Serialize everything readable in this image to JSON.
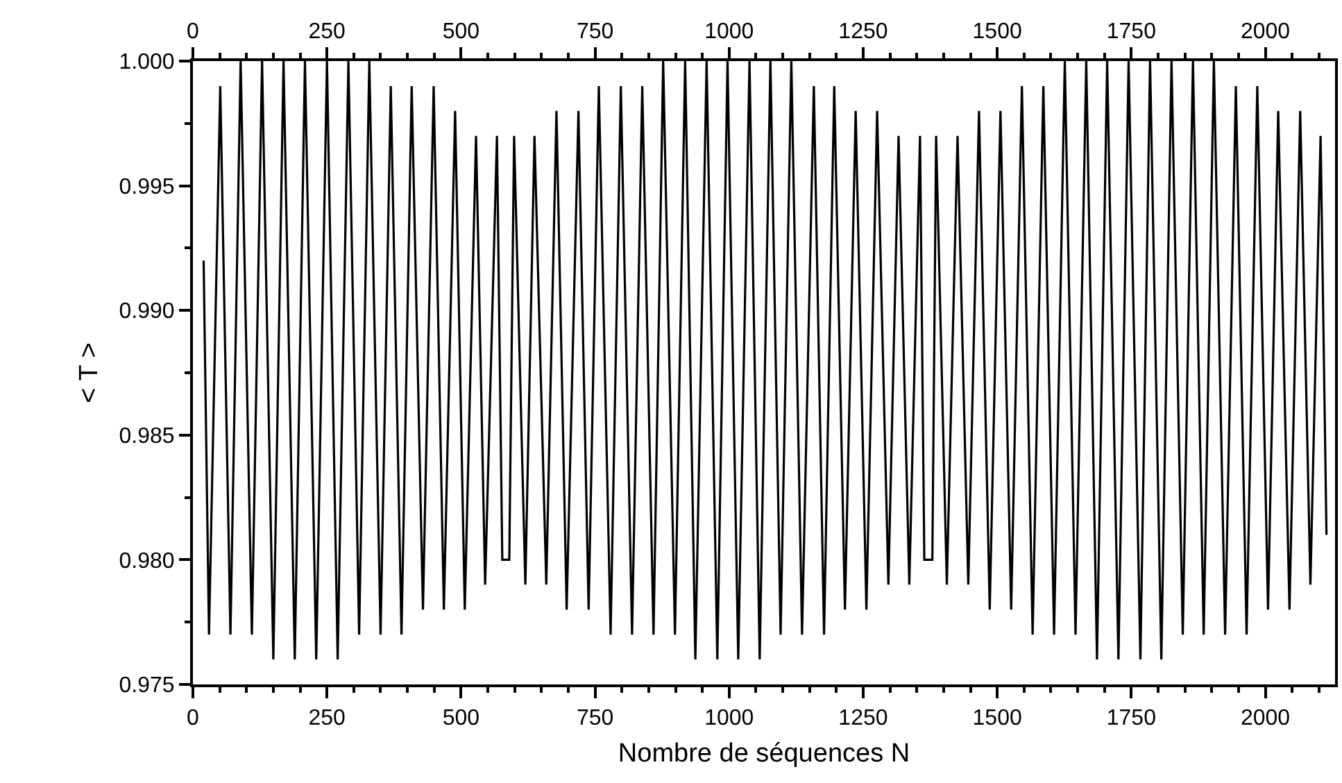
{
  "chart_data": {
    "type": "line",
    "xlabel": "Nombre de séquences N",
    "ylabel": "< T >",
    "xlim": [
      0,
      2130
    ],
    "x2lim": [
      0,
      2130
    ],
    "xticks": [
      0,
      {
        "value": 50,
        "label": null
      },
      {
        "value": 100,
        "label": null
      },
      {
        "value": 150,
        "label": null
      },
      {
        "value": 200,
        "label": null
      },
      250,
      {
        "value": 300,
        "label": null
      },
      {
        "value": 350,
        "label": null
      },
      {
        "value": 400,
        "label": null
      },
      {
        "value": 450,
        "label": null
      },
      500,
      {
        "value": 550,
        "label": null
      },
      {
        "value": 600,
        "label": null
      },
      {
        "value": 650,
        "label": null
      },
      {
        "value": 700,
        "label": null
      },
      750,
      {
        "value": 800,
        "label": null
      },
      {
        "value": 850,
        "label": null
      },
      {
        "value": 900,
        "label": null
      },
      {
        "value": 950,
        "label": null
      },
      1000,
      {
        "value": 1050,
        "label": null
      },
      {
        "value": 1100,
        "label": null
      },
      {
        "value": 1150,
        "label": null
      },
      {
        "value": 1200,
        "label": null
      },
      1250,
      {
        "value": 1300,
        "label": null
      },
      {
        "value": 1350,
        "label": null
      },
      {
        "value": 1400,
        "label": null
      },
      {
        "value": 1450,
        "label": null
      },
      1500,
      {
        "value": 1550,
        "label": null
      },
      {
        "value": 1600,
        "label": null
      },
      {
        "value": 1650,
        "label": null
      },
      {
        "value": 1700,
        "label": null
      },
      1750,
      {
        "value": 1800,
        "label": null
      },
      {
        "value": 1850,
        "label": null
      },
      {
        "value": 1900,
        "label": null
      },
      {
        "value": 1950,
        "label": null
      },
      2000,
      {
        "value": 2050,
        "label": null
      },
      {
        "value": 2100,
        "label": null
      }
    ],
    "x2ticks": [
      0,
      {
        "value": 50,
        "label": null
      },
      {
        "value": 100,
        "label": null
      },
      {
        "value": 150,
        "label": null
      },
      {
        "value": 200,
        "label": null
      },
      250,
      {
        "value": 300,
        "label": null
      },
      {
        "value": 350,
        "label": null
      },
      {
        "value": 400,
        "label": null
      },
      {
        "value": 450,
        "label": null
      },
      500,
      {
        "value": 550,
        "label": null
      },
      {
        "value": 600,
        "label": null
      },
      {
        "value": 650,
        "label": null
      },
      {
        "value": 700,
        "label": null
      },
      750,
      {
        "value": 800,
        "label": null
      },
      {
        "value": 850,
        "label": null
      },
      {
        "value": 900,
        "label": null
      },
      {
        "value": 950,
        "label": null
      },
      1000,
      {
        "value": 1050,
        "label": null
      },
      {
        "value": 1100,
        "label": null
      },
      {
        "value": 1150,
        "label": null
      },
      {
        "value": 1200,
        "label": null
      },
      1250,
      {
        "value": 1300,
        "label": null
      },
      {
        "value": 1350,
        "label": null
      },
      {
        "value": 1400,
        "label": null
      },
      {
        "value": 1450,
        "label": null
      },
      1500,
      {
        "value": 1550,
        "label": null
      },
      {
        "value": 1600,
        "label": null
      },
      {
        "value": 1650,
        "label": null
      },
      {
        "value": 1700,
        "label": null
      },
      1750,
      {
        "value": 1800,
        "label": null
      },
      {
        "value": 1850,
        "label": null
      },
      {
        "value": 1900,
        "label": null
      },
      {
        "value": 1950,
        "label": null
      },
      2000,
      {
        "value": 2050,
        "label": null
      },
      {
        "value": 2100,
        "label": null
      }
    ],
    "ylim": [
      0.975,
      1.0
    ],
    "yticks": [
      0.975,
      {
        "value": 0.9775,
        "label": null
      },
      {
        "value": 0.98,
        "label": "0.980"
      },
      {
        "value": 0.9825,
        "label": null
      },
      0.985,
      {
        "value": 0.9875,
        "label": null
      },
      {
        "value": 0.99,
        "label": "0.990"
      },
      {
        "value": 0.9925,
        "label": null
      },
      0.995,
      {
        "value": 0.9975,
        "label": null
      },
      {
        "value": 1.0,
        "label": "1.000"
      }
    ],
    "marker": "none",
    "line_style": "solid",
    "series": [
      {
        "color": "#000000",
        "x": [
          20,
          30,
          51,
          70,
          89,
          110,
          129,
          150,
          169,
          190,
          209,
          230,
          250,
          270,
          290,
          310,
          329,
          350,
          369,
          389,
          408,
          429,
          449,
          468,
          489,
          507,
          528,
          545,
          567,
          577,
          590,
          599,
          620,
          637,
          659,
          678,
          697,
          719,
          738,
          757,
          779,
          798,
          819,
          838,
          859,
          877,
          899,
          918,
          937,
          958,
          978,
          997,
          1017,
          1038,
          1057,
          1077,
          1096,
          1116,
          1136,
          1158,
          1177,
          1196,
          1216,
          1236,
          1256,
          1276,
          1297,
          1316,
          1336,
          1356,
          1364,
          1379,
          1386,
          1406,
          1426,
          1446,
          1466,
          1486,
          1506,
          1526,
          1546,
          1566,
          1586,
          1606,
          1626,
          1646,
          1666,
          1686,
          1705,
          1726,
          1745,
          1767,
          1785,
          1806,
          1825,
          1846,
          1865,
          1885,
          1904,
          1925,
          1945,
          1965,
          1985,
          2005,
          2024,
          2045,
          2065,
          2084,
          2103,
          2114
        ],
        "values": [
          0.992,
          0.977,
          0.999,
          0.977,
          1.0,
          0.977,
          1.0,
          0.976,
          1.0,
          0.976,
          1.0,
          0.976,
          1.0,
          0.976,
          1.0,
          0.977,
          1.0,
          0.977,
          0.999,
          0.977,
          0.999,
          0.978,
          0.999,
          0.978,
          0.998,
          0.978,
          0.997,
          0.979,
          0.997,
          0.98,
          0.98,
          0.997,
          0.979,
          0.997,
          0.979,
          0.998,
          0.978,
          0.998,
          0.978,
          0.999,
          0.977,
          0.999,
          0.977,
          0.999,
          0.977,
          1.0,
          0.977,
          1.0,
          0.976,
          1.0,
          0.976,
          1.0,
          0.976,
          1.0,
          0.976,
          1.0,
          0.977,
          1.0,
          0.977,
          0.999,
          0.977,
          0.999,
          0.978,
          0.998,
          0.978,
          0.998,
          0.979,
          0.997,
          0.979,
          0.997,
          0.98,
          0.98,
          0.997,
          0.979,
          0.997,
          0.979,
          0.998,
          0.978,
          0.998,
          0.978,
          0.999,
          0.977,
          0.999,
          0.977,
          1.0,
          0.977,
          1.0,
          0.976,
          1.0,
          0.976,
          1.0,
          0.976,
          1.0,
          0.976,
          1.0,
          0.977,
          1.0,
          0.977,
          1.0,
          0.977,
          0.999,
          0.977,
          0.999,
          0.978,
          0.998,
          0.978,
          0.998,
          0.979,
          0.997,
          0.981
        ]
      }
    ]
  }
}
